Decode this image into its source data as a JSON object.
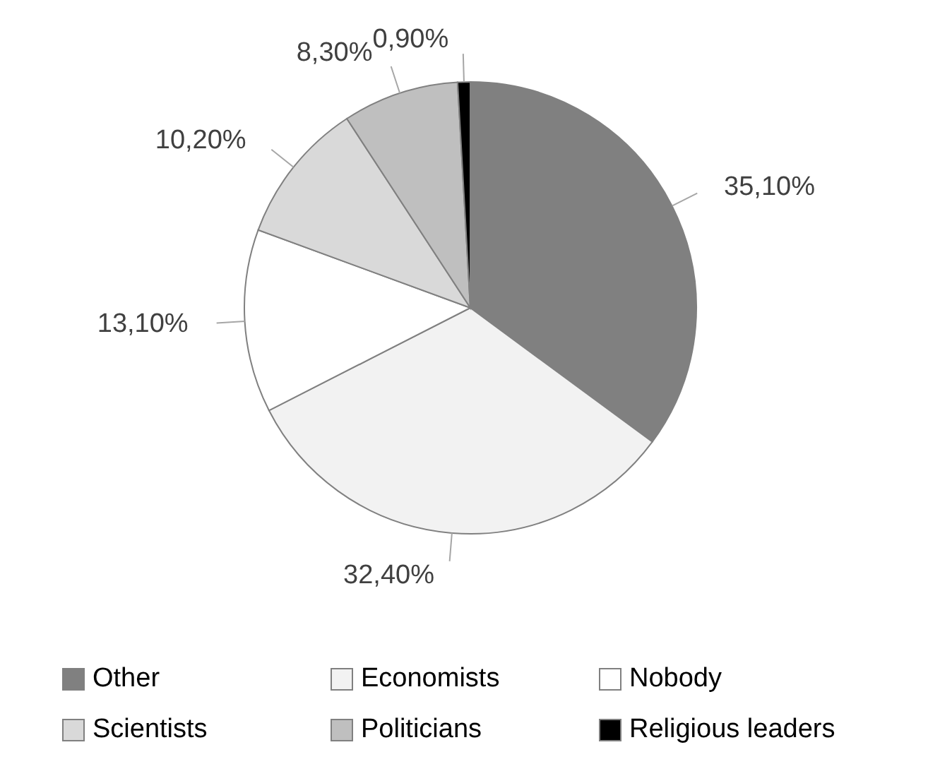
{
  "chart_data": {
    "type": "pie",
    "categories": [
      "Other",
      "Economists",
      "Nobody",
      "Scientists",
      "Politicians",
      "Religious leaders"
    ],
    "values": [
      35.1,
      32.4,
      13.1,
      10.2,
      8.3,
      0.9
    ],
    "value_labels": [
      "35,10%",
      "32,40%",
      "13,10%",
      "10,20%",
      "8,30%",
      "0,90%"
    ],
    "colors": [
      "#808080",
      "#f2f2f2",
      "#ffffff",
      "#d9d9d9",
      "#bfbfbf",
      "#000000"
    ],
    "legend": "bottom"
  }
}
